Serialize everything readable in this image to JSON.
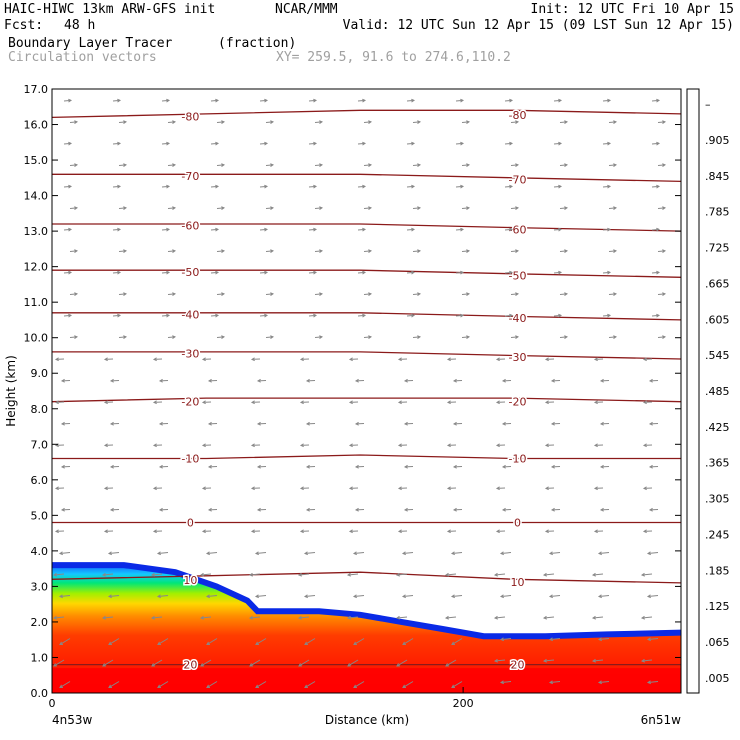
{
  "header": {
    "model": "HAIC-HIWC 13km ARW-GFS init",
    "center": "NCAR/MMM",
    "init": "Init: 12 UTC Fri 10 Apr 15",
    "fcst_label": "Fcst:",
    "fcst_value": "48 h",
    "valid": "Valid: 12 UTC Sun 12 Apr 15 (09 LST Sun 12 Apr 15)",
    "field": "Boundary Layer Tracer",
    "field_units": "(fraction)",
    "overlay": "Circulation vectors",
    "xy": "XY= 259.5, 91.6 to 274.6,110.2"
  },
  "colors": {
    "contour": "#8b1a1a",
    "vector": "#888888",
    "colorbar": [
      "#ffffff",
      "#0a32ff",
      "#1464ff",
      "#1e96ff",
      "#14c8ff",
      "#00e6e6",
      "#00e6b4",
      "#00e678",
      "#1edc3c",
      "#64e614",
      "#a0f000",
      "#d2f500",
      "#f5f500",
      "#ffd700",
      "#ffb400",
      "#ff8c00",
      "#ff6400",
      "#ff3c00",
      "#ff1e00",
      "#ff0000"
    ]
  },
  "chart_data": {
    "type": "heatmap",
    "title": "Boundary Layer Tracer",
    "units": "(fraction)",
    "xlabel": "Distance (km)",
    "ylabel": "Height (km)",
    "xlim": [
      0,
      306
    ],
    "ylim": [
      0.0,
      17.0
    ],
    "x_ticks": [
      0,
      200
    ],
    "x_tick_labels": [
      "0",
      "200"
    ],
    "y_ticks": [
      0.0,
      1.0,
      2.0,
      3.0,
      4.0,
      5.0,
      6.0,
      7.0,
      8.0,
      9.0,
      10.0,
      11.0,
      12.0,
      13.0,
      14.0,
      15.0,
      16.0,
      17.0
    ],
    "y_tick_labels": [
      "0.0",
      "1.0",
      "2.0",
      "3.0",
      "4.0",
      "5.0",
      "6.0",
      "7.0",
      "8.0",
      "9.0",
      "10.0",
      "11.0",
      "12.0",
      "13.0",
      "14.0",
      "15.0",
      "16.0",
      "17.0"
    ],
    "endpoint_labels": [
      "4n53w",
      "6n51w"
    ],
    "colorbar_labels": [
      ".005",
      ".065",
      ".125",
      ".185",
      ".245",
      ".305",
      ".365",
      ".425",
      ".485",
      ".545",
      ".605",
      ".665",
      ".725",
      ".785",
      ".845",
      ".905",
      "–"
    ],
    "colorbar_values": [
      0.005,
      0.065,
      0.125,
      0.185,
      0.245,
      0.305,
      0.365,
      0.425,
      0.485,
      0.545,
      0.605,
      0.665,
      0.725,
      0.785,
      0.845,
      0.905
    ],
    "tracer_top_km": [
      [
        0,
        3.6
      ],
      [
        35,
        3.6
      ],
      [
        60,
        3.4
      ],
      [
        80,
        3.0
      ],
      [
        95,
        2.6
      ],
      [
        100,
        2.3
      ],
      [
        130,
        2.3
      ],
      [
        150,
        2.2
      ],
      [
        170,
        2.0
      ],
      [
        190,
        1.8
      ],
      [
        210,
        1.6
      ],
      [
        240,
        1.6
      ],
      [
        270,
        1.65
      ],
      [
        306,
        1.7
      ]
    ],
    "temperature_contours_C": [
      {
        "label": "-80",
        "y": [
          16.2,
          16.3,
          16.4,
          16.4,
          16.3
        ]
      },
      {
        "label": "-70",
        "y": [
          14.6,
          14.6,
          14.6,
          14.5,
          14.4
        ]
      },
      {
        "label": "-60",
        "y": [
          13.2,
          13.2,
          13.2,
          13.1,
          13.0
        ]
      },
      {
        "label": "-50",
        "y": [
          11.9,
          11.9,
          11.9,
          11.8,
          11.7
        ]
      },
      {
        "label": "-40",
        "y": [
          10.7,
          10.7,
          10.7,
          10.6,
          10.5
        ]
      },
      {
        "label": "-30",
        "y": [
          9.6,
          9.6,
          9.6,
          9.5,
          9.4
        ]
      },
      {
        "label": "-20",
        "y": [
          8.2,
          8.3,
          8.3,
          8.3,
          8.2
        ]
      },
      {
        "label": "-10",
        "y": [
          6.6,
          6.6,
          6.7,
          6.6,
          6.6
        ]
      },
      {
        "label": "0",
        "y": [
          4.8,
          4.8,
          4.8,
          4.8,
          4.8
        ]
      },
      {
        "label": "10",
        "y": [
          3.2,
          3.3,
          3.4,
          3.2,
          3.1
        ]
      },
      {
        "label": "20",
        "y": [
          0.8,
          0.8,
          0.8,
          0.8,
          0.8
        ]
      }
    ],
    "contour_x_km": [
      0,
      75,
      150,
      225,
      306
    ]
  }
}
